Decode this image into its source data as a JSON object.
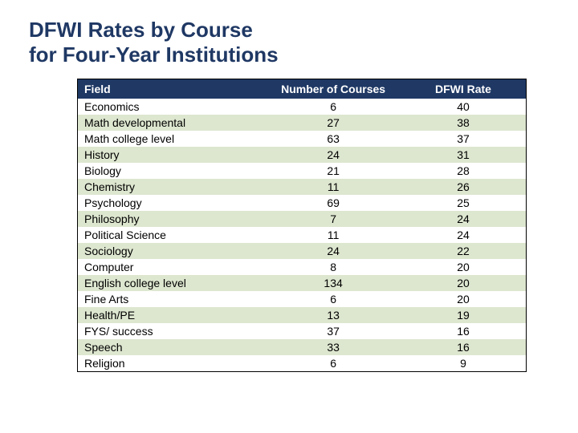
{
  "title_line1": "DFWI Rates by Course",
  "title_line2": "for Four-Year Institutions",
  "table": {
    "type": "table",
    "header_bg": "#1f3864",
    "header_text_color": "#ffffff",
    "row_odd_bg": "#ffffff",
    "row_even_bg": "#dde6cf",
    "border_color": "#000000",
    "font_size_header": 14,
    "font_size_cell": 14,
    "title_color": "#1f3864",
    "title_fontsize": 26,
    "columns": [
      {
        "key": "field",
        "label": "Field",
        "align": "left",
        "width_pct": 42
      },
      {
        "key": "num",
        "label": "Number of Courses",
        "align": "center",
        "width_pct": 30
      },
      {
        "key": "rate",
        "label": "DFWI Rate",
        "align": "center",
        "width_pct": 28
      }
    ],
    "rows": [
      {
        "field": "Economics",
        "num": 6,
        "rate": 40
      },
      {
        "field": "Math developmental",
        "num": 27,
        "rate": 38
      },
      {
        "field": "Math college level",
        "num": 63,
        "rate": 37
      },
      {
        "field": "History",
        "num": 24,
        "rate": 31
      },
      {
        "field": "Biology",
        "num": 21,
        "rate": 28
      },
      {
        "field": "Chemistry",
        "num": 11,
        "rate": 26
      },
      {
        "field": "Psychology",
        "num": 69,
        "rate": 25
      },
      {
        "field": "Philosophy",
        "num": 7,
        "rate": 24
      },
      {
        "field": "Political Science",
        "num": 11,
        "rate": 24
      },
      {
        "field": "Sociology",
        "num": 24,
        "rate": 22
      },
      {
        "field": "Computer",
        "num": 8,
        "rate": 20
      },
      {
        "field": "English college level",
        "num": 134,
        "rate": 20
      },
      {
        "field": "Fine Arts",
        "num": 6,
        "rate": 20
      },
      {
        "field": "Health/PE",
        "num": 13,
        "rate": 19
      },
      {
        "field": "FYS/ success",
        "num": 37,
        "rate": 16
      },
      {
        "field": "Speech",
        "num": 33,
        "rate": 16
      },
      {
        "field": "Religion",
        "num": 6,
        "rate": 9
      }
    ]
  }
}
